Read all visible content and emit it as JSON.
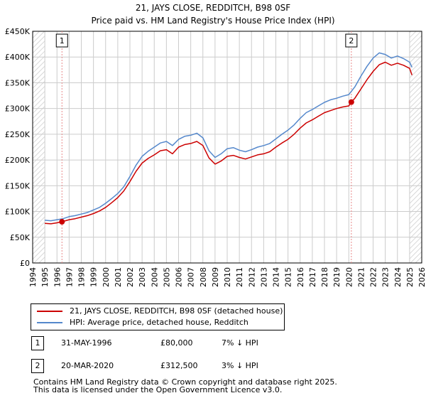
{
  "chart_data": {
    "type": "line",
    "title": "21, JAYS CLOSE, REDDITCH, B98 0SF",
    "subtitle": "Price paid vs. HM Land Registry's House Price Index (HPI)",
    "xlabel": "",
    "ylabel": "",
    "xlim": [
      1994,
      2026
    ],
    "ylim": [
      0,
      450000
    ],
    "x_ticks": [
      "1994",
      "1995",
      "1996",
      "1997",
      "1998",
      "1999",
      "2000",
      "2001",
      "2002",
      "2003",
      "2004",
      "2005",
      "2006",
      "2007",
      "2008",
      "2009",
      "2010",
      "2011",
      "2012",
      "2013",
      "2014",
      "2015",
      "2016",
      "2017",
      "2018",
      "2019",
      "2020",
      "2021",
      "2022",
      "2023",
      "2024",
      "2025",
      "2026"
    ],
    "y_ticks": [
      "£0",
      "£50K",
      "£100K",
      "£150K",
      "£200K",
      "£250K",
      "£300K",
      "£350K",
      "£400K",
      "£450K"
    ],
    "y_tick_values": [
      0,
      50000,
      100000,
      150000,
      200000,
      250000,
      300000,
      350000,
      400000,
      450000
    ],
    "grid": true,
    "hatched_ranges": [
      [
        1994,
        1995.0
      ],
      [
        2025.0,
        2026
      ]
    ],
    "series": [
      {
        "name": "21, JAYS CLOSE, REDDITCH, B98 0SF (detached house)",
        "color": "#cc0000",
        "x": [
          1995.0,
          1995.5,
          1996.0,
          1996.41,
          1997.0,
          1997.5,
          1998.0,
          1998.5,
          1999.0,
          1999.5,
          2000.0,
          2000.5,
          2001.0,
          2001.5,
          2002.0,
          2002.5,
          2003.0,
          2003.5,
          2004.0,
          2004.5,
          2005.0,
          2005.5,
          2006.0,
          2006.5,
          2007.0,
          2007.5,
          2008.0,
          2008.5,
          2009.0,
          2009.5,
          2010.0,
          2010.5,
          2011.0,
          2011.5,
          2012.0,
          2012.5,
          2013.0,
          2013.5,
          2014.0,
          2014.5,
          2015.0,
          2015.5,
          2016.0,
          2016.5,
          2017.0,
          2017.5,
          2018.0,
          2018.5,
          2019.0,
          2019.5,
          2020.0,
          2020.21,
          2020.5,
          2021.0,
          2021.5,
          2022.0,
          2022.5,
          2023.0,
          2023.5,
          2024.0,
          2024.5,
          2025.0,
          2025.2
        ],
        "values": [
          77000,
          76000,
          78000,
          80000,
          84000,
          86000,
          89000,
          92000,
          96000,
          101000,
          108000,
          117000,
          127000,
          140000,
          158000,
          178000,
          194000,
          203000,
          210000,
          218000,
          220000,
          212000,
          225000,
          230000,
          232000,
          236000,
          228000,
          204000,
          192000,
          198000,
          207000,
          209000,
          205000,
          202000,
          206000,
          210000,
          212000,
          216000,
          225000,
          233000,
          240000,
          250000,
          262000,
          272000,
          278000,
          285000,
          292000,
          296000,
          300000,
          303000,
          305000,
          312500,
          320000,
          338000,
          356000,
          372000,
          385000,
          390000,
          384000,
          388000,
          384000,
          378000,
          365000
        ]
      },
      {
        "name": "HPI: Average price, detached house, Redditch",
        "color": "#5588cc",
        "x": [
          1995.0,
          1995.5,
          1996.0,
          1996.5,
          1997.0,
          1997.5,
          1998.0,
          1998.5,
          1999.0,
          1999.5,
          2000.0,
          2000.5,
          2001.0,
          2001.5,
          2002.0,
          2002.5,
          2003.0,
          2003.5,
          2004.0,
          2004.5,
          2005.0,
          2005.5,
          2006.0,
          2006.5,
          2007.0,
          2007.5,
          2008.0,
          2008.5,
          2009.0,
          2009.5,
          2010.0,
          2010.5,
          2011.0,
          2011.5,
          2012.0,
          2012.5,
          2013.0,
          2013.5,
          2014.0,
          2014.5,
          2015.0,
          2015.5,
          2016.0,
          2016.5,
          2017.0,
          2017.5,
          2018.0,
          2018.5,
          2019.0,
          2019.5,
          2020.0,
          2020.5,
          2021.0,
          2021.5,
          2022.0,
          2022.5,
          2023.0,
          2023.5,
          2024.0,
          2024.5,
          2025.0,
          2025.2
        ],
        "values": [
          83000,
          82000,
          84000,
          86000,
          90000,
          92000,
          95000,
          98000,
          103000,
          108000,
          116000,
          125000,
          135000,
          148000,
          168000,
          190000,
          207000,
          217000,
          225000,
          233000,
          236000,
          228000,
          240000,
          246000,
          248000,
          252000,
          243000,
          218000,
          205000,
          212000,
          222000,
          224000,
          219000,
          216000,
          220000,
          225000,
          228000,
          232000,
          241000,
          250000,
          258000,
          268000,
          281000,
          292000,
          298000,
          305000,
          312000,
          317000,
          320000,
          324000,
          327000,
          342000,
          363000,
          382000,
          398000,
          408000,
          405000,
          398000,
          402000,
          397000,
          390000,
          380000
        ]
      }
    ],
    "annotations": [
      {
        "label": "1",
        "x": 1996.41,
        "y": 80000,
        "badge_y": 432000
      },
      {
        "label": "2",
        "x": 2020.21,
        "y": 312500,
        "badge_y": 432000
      }
    ]
  },
  "legend": {
    "series1": "21, JAYS CLOSE, REDDITCH, B98 0SF (detached house)",
    "series2": "HPI: Average price, detached house, Redditch"
  },
  "transactions": [
    {
      "label": "1",
      "date": "31-MAY-1996",
      "price": "£80,000",
      "hpi": "7% ↓ HPI"
    },
    {
      "label": "2",
      "date": "20-MAR-2020",
      "price": "£312,500",
      "hpi": "3% ↓ HPI"
    }
  ],
  "footer": {
    "line1": "Contains HM Land Registry data © Crown copyright and database right 2025.",
    "line2": "This data is licensed under the Open Government Licence v3.0."
  },
  "colors": {
    "price_line": "#cc0000",
    "hpi_line": "#5588cc",
    "grid": "#cccccc",
    "vline": "#e88888"
  }
}
